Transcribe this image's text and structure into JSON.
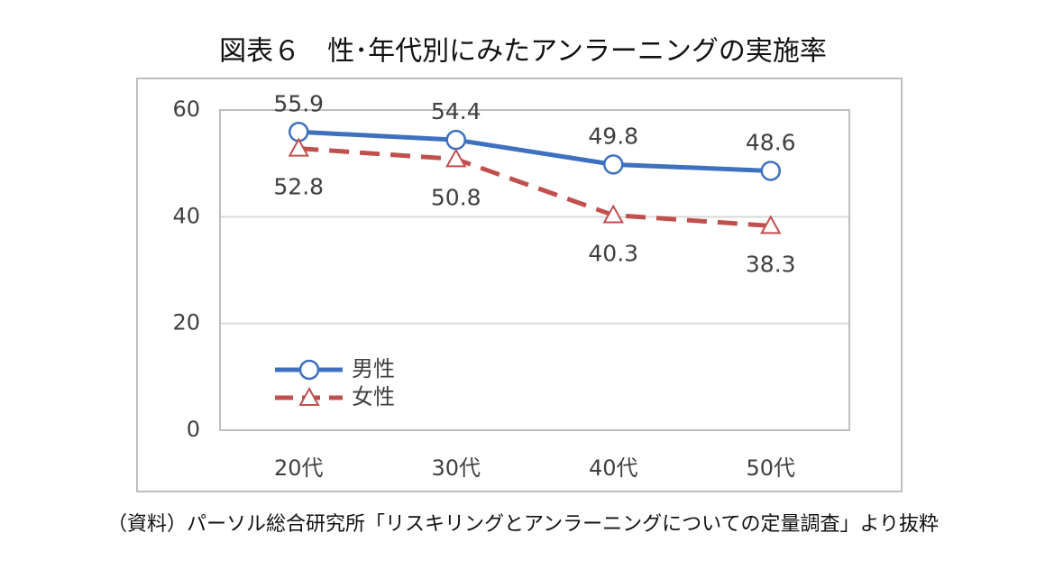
{
  "chart_data": {
    "type": "line",
    "title": "図表６　性･年代別にみたアンラーニングの実施率",
    "source": "（資料）パーソル総合研究所「リスキリングとアンラーニングについての定量調査」より抜粋",
    "categories": [
      "20代",
      "30代",
      "40代",
      "50代"
    ],
    "series": [
      {
        "name": "男性",
        "color": "#3e70c0",
        "marker": "circle",
        "line_style": "solid",
        "values": [
          55.9,
          54.4,
          49.8,
          48.6
        ]
      },
      {
        "name": "女性",
        "color": "#c0504d",
        "marker": "triangle",
        "line_style": "dashed",
        "values": [
          52.8,
          50.8,
          40.3,
          38.3
        ]
      }
    ],
    "ylim": [
      0,
      60
    ],
    "yticks": [
      0,
      20,
      40,
      60
    ],
    "grid": true,
    "legend": "lower left"
  }
}
